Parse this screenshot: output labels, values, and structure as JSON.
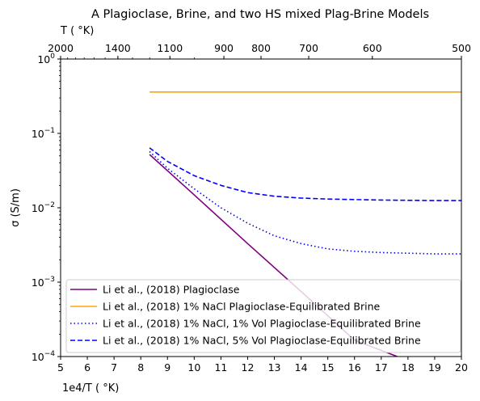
{
  "chart_data": {
    "type": "line",
    "title": "A Plagioclase, Brine, and two HS mixed Plag-Brine Models",
    "xlabel": "1e4/T ($^\\circ$K)",
    "xlabel_display": "1e4/T ( °K)",
    "ylabel": "σ (S/m)",
    "top_xlabel": "T ( °K)",
    "xlim": [
      5,
      20
    ],
    "ylim": [
      0.0001,
      1
    ],
    "yscale": "log",
    "grid": false,
    "legend_position": "lower-left",
    "x_ticks": [
      "5",
      "6",
      "7",
      "8",
      "9",
      "10",
      "11",
      "12",
      "13",
      "14",
      "15",
      "16",
      "17",
      "18",
      "19",
      "20"
    ],
    "y_ticks": [
      "10^-4",
      "10^-3",
      "10^-2",
      "10^-1",
      "10^0"
    ],
    "top_ticks": [
      {
        "label": "2000",
        "T": 2000
      },
      {
        "label": "1400",
        "T": 1400
      },
      {
        "label": "1100",
        "T": 1100
      },
      {
        "label": "900",
        "T": 900
      },
      {
        "label": "800",
        "T": 800
      },
      {
        "label": "700",
        "T": 700
      },
      {
        "label": "600",
        "T": 600
      },
      {
        "label": "500",
        "T": 500
      }
    ],
    "series": [
      {
        "name": "Li et al., (2018) Plagioclase",
        "color": "#800080",
        "dash": "solid",
        "x": [
          8.33,
          10,
          12,
          14,
          16,
          17.6
        ],
        "y": [
          0.052,
          0.0149,
          0.0033,
          0.00075,
          0.000166,
          0.0001
        ]
      },
      {
        "name": "Li et al., (2018) 1% NaCl Plagioclase-Equilibrated Brine",
        "color": "#FFA500",
        "dash": "solid",
        "x": [
          8.33,
          20
        ],
        "y": [
          0.36,
          0.36
        ]
      },
      {
        "name": "Li et al., (2018) 1% NaCl, 1% Vol Plagioclase-Equilibrated Brine",
        "color": "#0000FF",
        "dash": "dotted",
        "x": [
          8.33,
          9,
          10,
          11,
          12,
          13,
          14,
          15,
          16,
          17,
          18,
          19,
          20
        ],
        "y": [
          0.057,
          0.034,
          0.018,
          0.01,
          0.0062,
          0.0042,
          0.0033,
          0.0028,
          0.0026,
          0.0025,
          0.00245,
          0.0024,
          0.0024
        ]
      },
      {
        "name": "Li et al., (2018) 1% NaCl, 5% Vol Plagioclase-Equilibrated Brine",
        "color": "#0000FF",
        "dash": "dashed",
        "x": [
          8.33,
          9,
          10,
          11,
          12,
          13,
          14,
          15,
          16,
          17,
          18,
          19,
          20
        ],
        "y": [
          0.064,
          0.042,
          0.027,
          0.02,
          0.016,
          0.0143,
          0.0135,
          0.0131,
          0.0129,
          0.0127,
          0.0126,
          0.0125,
          0.0125
        ]
      }
    ]
  }
}
